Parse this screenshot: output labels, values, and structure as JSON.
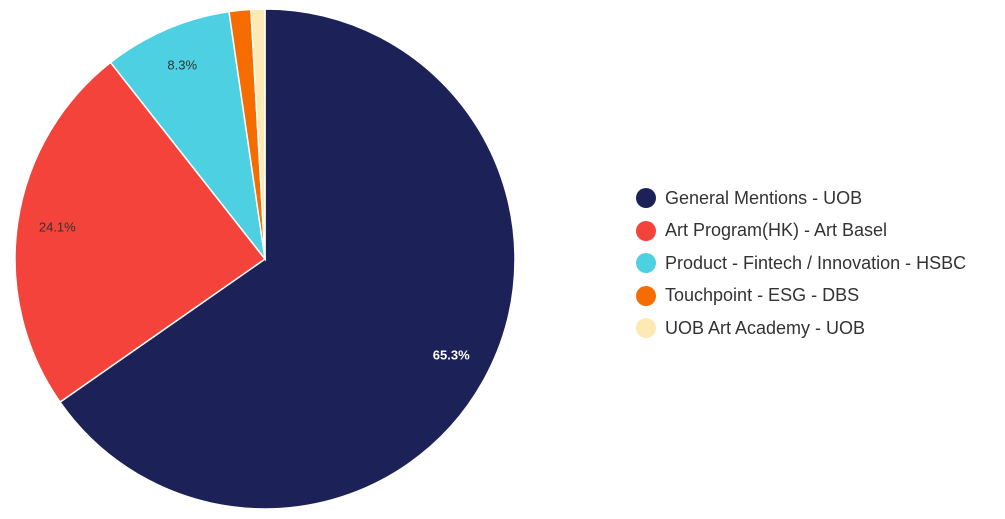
{
  "chart_data": {
    "type": "pie",
    "slices": [
      {
        "label": "General Mentions - UOB",
        "value": 65.3,
        "color": "#1c2257",
        "value_label": "65.3%",
        "label_color": "#ffffff"
      },
      {
        "label": "Art Program(HK) - Art Basel",
        "value": 24.1,
        "color": "#f4433a",
        "value_label": "24.1%",
        "label_color": "#333333"
      },
      {
        "label": "Product - Fintech / Innovation - HSBC",
        "value": 8.3,
        "color": "#4dd0e1",
        "value_label": "8.3%",
        "label_color": "#333333"
      },
      {
        "label": "Touchpoint - ESG - DBS",
        "value": 1.4,
        "color": "#f56c00",
        "value_label": "",
        "label_color": "#333333"
      },
      {
        "label": "UOB Art Academy - UOB",
        "value": 0.9,
        "color": "#fde9b4",
        "value_label": "",
        "label_color": "#333333"
      }
    ],
    "legend_position": "right",
    "start_angle": "top, clockwise"
  }
}
